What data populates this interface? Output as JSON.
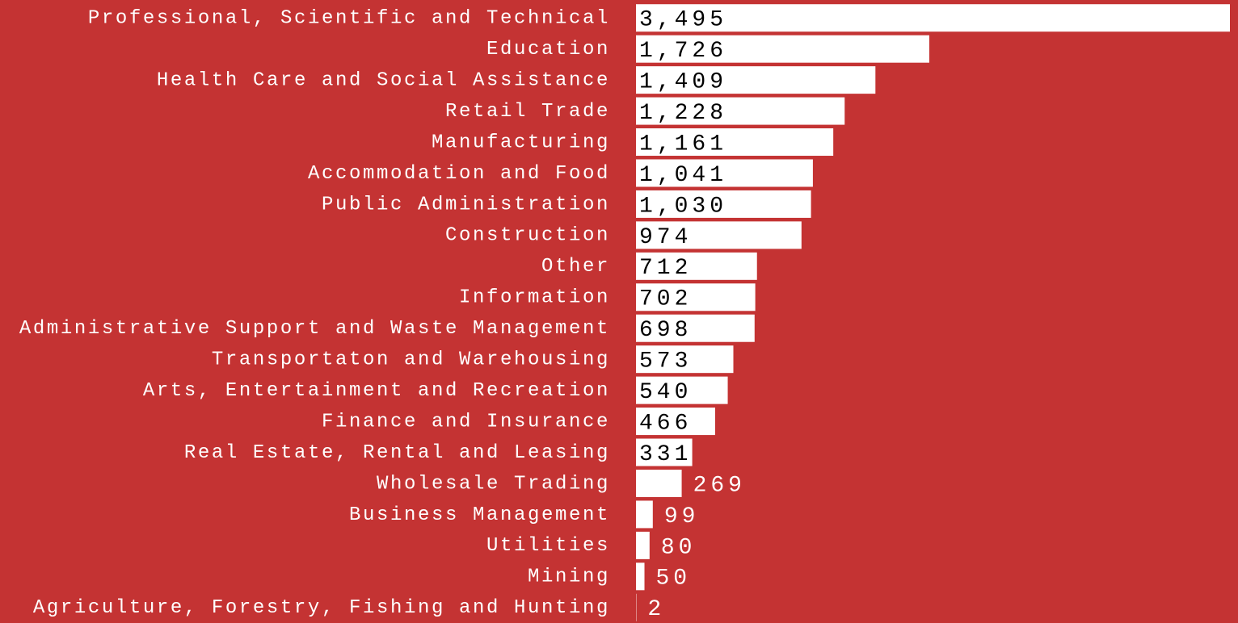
{
  "chart_data": {
    "type": "bar",
    "orientation": "horizontal",
    "categories": [
      "Professional, Scientific and Technical",
      "Education",
      "Health Care and Social Assistance",
      "Retail Trade",
      "Manufacturing",
      "Accommodation and Food",
      "Public Administration",
      "Construction",
      "Other",
      "Information",
      "Administrative Support and Waste Management",
      "Transportaton and Warehousing",
      "Arts, Entertainment and Recreation",
      "Finance and Insurance",
      "Real Estate, Rental and Leasing",
      "Wholesale Trading",
      "Business Management",
      "Utilities",
      "Mining",
      "Agriculture, Forestry, Fishing and Hunting"
    ],
    "values": [
      3495,
      1726,
      1409,
      1228,
      1161,
      1041,
      1030,
      974,
      712,
      702,
      698,
      573,
      540,
      466,
      331,
      269,
      99,
      80,
      50,
      2
    ],
    "value_labels": [
      "3,495",
      "1,726",
      "1,409",
      "1,228",
      "1,161",
      "1,041",
      "1,030",
      "974",
      "712",
      "702",
      "698",
      "573",
      "540",
      "466",
      "331",
      "269",
      "99",
      "80",
      "50",
      "2"
    ],
    "color": "#ffffff",
    "background": "#c43333"
  }
}
